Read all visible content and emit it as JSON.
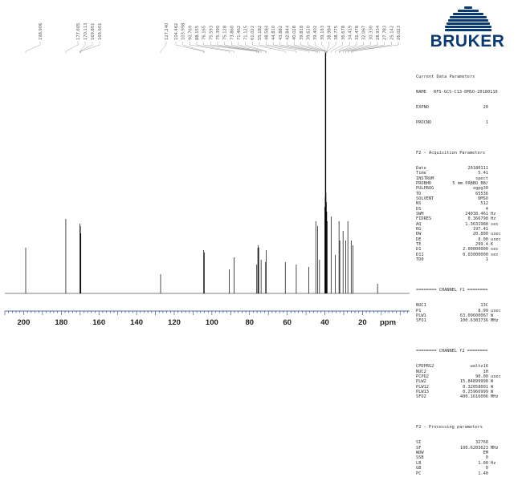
{
  "logo": {
    "text": "BRUKER"
  },
  "axis": {
    "unit": "ppm",
    "ticks": [
      "200",
      "180",
      "160",
      "140",
      "120",
      "100",
      "80",
      "60",
      "40",
      "20"
    ]
  },
  "peak_labels": [
    "198.906",
    "177.605",
    "170.113",
    "169.851",
    "169.601",
    "127.240",
    "104.462",
    "103.998",
    "90.769",
    "88.155",
    "76.165",
    "75.593",
    "75.390",
    "75.128",
    "73.860",
    "71.462",
    "71.125",
    "61.022",
    "55.182",
    "48.584",
    "44.810",
    "43.882",
    "42.844",
    "40.028",
    "39.818",
    "39.610",
    "39.402",
    "39.193",
    "38.984",
    "38.775",
    "36.678",
    "34.419",
    "32.478",
    "32.067",
    "30.330",
    "28.934",
    "27.783",
    "25.142",
    "26.023"
  ],
  "params": {
    "current_header": "Current Data Parameters",
    "name_key": "NAME",
    "name_val": "RFS-GCS-C13-DMSO-20180110",
    "expno_key": "EXPNO",
    "expno_val": "20",
    "procno_key": "PROCNO",
    "procno_val": "1",
    "f2_acq_header": "F2 - Acquisition Parameters",
    "acq": [
      {
        "k": "Date_",
        "v": "20180111",
        "u": ""
      },
      {
        "k": "Time",
        "v": "5.41",
        "u": ""
      },
      {
        "k": "INSTRUM",
        "v": "spect",
        "u": ""
      },
      {
        "k": "PROBHD",
        "v": "5 mm PABBO BB/",
        "u": ""
      },
      {
        "k": "PULPROG",
        "v": "zgpg30",
        "u": ""
      },
      {
        "k": "TD",
        "v": "65536",
        "u": ""
      },
      {
        "k": "SOLVENT",
        "v": "DMSO",
        "u": ""
      },
      {
        "k": "NS",
        "v": "512",
        "u": ""
      },
      {
        "k": "DS",
        "v": "4",
        "u": ""
      },
      {
        "k": "SWH",
        "v": "24038.461",
        "u": "Hz"
      },
      {
        "k": "FIDRES",
        "v": "0.366798",
        "u": "Hz"
      },
      {
        "k": "AQ",
        "v": "1.3631988",
        "u": "sec"
      },
      {
        "k": "RG",
        "v": "197.41",
        "u": ""
      },
      {
        "k": "DW",
        "v": "20.800",
        "u": "usec"
      },
      {
        "k": "DE",
        "v": "8.00",
        "u": "usec"
      },
      {
        "k": "TE",
        "v": "299.4",
        "u": "K"
      },
      {
        "k": "D1",
        "v": "2.00000000",
        "u": "sec"
      },
      {
        "k": "D11",
        "v": "0.03000000",
        "u": "sec"
      },
      {
        "k": "TD0",
        "v": "1",
        "u": ""
      }
    ],
    "ch1_header": "======== CHANNEL f1 ========",
    "ch1": [
      {
        "k": "NUC1",
        "v": "13C",
        "u": ""
      },
      {
        "k": "P1",
        "v": "8.99",
        "u": "usec"
      },
      {
        "k": "PLW1",
        "v": "63.09600067",
        "u": "W"
      },
      {
        "k": "SFO1",
        "v": "100.6303736",
        "u": "MHz"
      }
    ],
    "ch2_header": "======== CHANNEL f2 ========",
    "ch2": [
      {
        "k": "CPDPRG2",
        "v": "waltz16",
        "u": ""
      },
      {
        "k": "NUC2",
        "v": "1H",
        "u": ""
      },
      {
        "k": "PCPD2",
        "v": "90.00",
        "u": "usec"
      },
      {
        "k": "PLW2",
        "v": "15.84899998",
        "u": "W"
      },
      {
        "k": "PLW12",
        "v": "0.32058001",
        "u": "W"
      },
      {
        "k": "PLW13",
        "v": "0.25966999",
        "u": "W"
      },
      {
        "k": "SFO2",
        "v": "400.1616006",
        "u": "MHz"
      }
    ],
    "proc_header": "F2 - Processing parameters",
    "proc": [
      {
        "k": "SI",
        "v": "32768",
        "u": ""
      },
      {
        "k": "SF",
        "v": "100.6203623",
        "u": "MHz"
      },
      {
        "k": "WDW",
        "v": "EM",
        "u": ""
      },
      {
        "k": "SSB",
        "v": "0",
        "u": ""
      },
      {
        "k": "LB",
        "v": "1.00",
        "u": "Hz"
      },
      {
        "k": "GB",
        "v": "0",
        "u": ""
      },
      {
        "k": "PC",
        "v": "1.40",
        "u": ""
      }
    ]
  },
  "chart_data": {
    "type": "line",
    "title": "",
    "xlabel": "ppm",
    "ylabel": "",
    "xlim": [
      210,
      -5
    ],
    "x_reversed": true,
    "xticks": [
      200,
      180,
      160,
      140,
      120,
      100,
      80,
      60,
      40,
      20
    ],
    "peaks": [
      {
        "ppm": 198.906,
        "intensity": 0.19
      },
      {
        "ppm": 177.605,
        "intensity": 0.31
      },
      {
        "ppm": 170.113,
        "intensity": 0.29
      },
      {
        "ppm": 169.851,
        "intensity": 0.28
      },
      {
        "ppm": 169.601,
        "intensity": 0.25
      },
      {
        "ppm": 127.24,
        "intensity": 0.08
      },
      {
        "ppm": 104.462,
        "intensity": 0.18
      },
      {
        "ppm": 103.998,
        "intensity": 0.17
      },
      {
        "ppm": 90.769,
        "intensity": 0.1
      },
      {
        "ppm": 88.155,
        "intensity": 0.15
      },
      {
        "ppm": 76.165,
        "intensity": 0.12
      },
      {
        "ppm": 75.593,
        "intensity": 0.19
      },
      {
        "ppm": 75.39,
        "intensity": 0.2
      },
      {
        "ppm": 75.128,
        "intensity": 0.19
      },
      {
        "ppm": 73.86,
        "intensity": 0.14
      },
      {
        "ppm": 71.462,
        "intensity": 0.13
      },
      {
        "ppm": 71.125,
        "intensity": 0.18
      },
      {
        "ppm": 61.022,
        "intensity": 0.13
      },
      {
        "ppm": 55.182,
        "intensity": 0.12
      },
      {
        "ppm": 48.584,
        "intensity": 0.11
      },
      {
        "ppm": 44.81,
        "intensity": 0.3
      },
      {
        "ppm": 43.882,
        "intensity": 0.28
      },
      {
        "ppm": 42.844,
        "intensity": 0.14
      },
      {
        "ppm": 40.028,
        "intensity": 0.36
      },
      {
        "ppm": 39.818,
        "intensity": 0.4
      },
      {
        "ppm": 39.61,
        "intensity": 1.0
      },
      {
        "ppm": 39.402,
        "intensity": 0.42
      },
      {
        "ppm": 39.193,
        "intensity": 0.38
      },
      {
        "ppm": 38.984,
        "intensity": 0.34
      },
      {
        "ppm": 38.775,
        "intensity": 0.3
      },
      {
        "ppm": 36.678,
        "intensity": 0.32
      },
      {
        "ppm": 34.419,
        "intensity": 0.16
      },
      {
        "ppm": 32.478,
        "intensity": 0.3
      },
      {
        "ppm": 32.067,
        "intensity": 0.22
      },
      {
        "ppm": 30.33,
        "intensity": 0.26
      },
      {
        "ppm": 28.934,
        "intensity": 0.22
      },
      {
        "ppm": 27.783,
        "intensity": 0.3
      },
      {
        "ppm": 25.142,
        "intensity": 0.2
      },
      {
        "ppm": 26.023,
        "intensity": 0.22
      },
      {
        "ppm": 12.0,
        "intensity": 0.04
      }
    ]
  }
}
